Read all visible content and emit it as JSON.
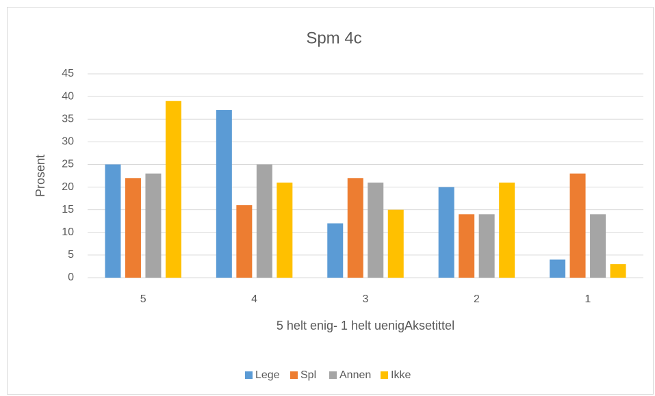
{
  "chart_data": {
    "type": "bar",
    "title": "Spm 4c",
    "x_label": "5 helt enig- 1 helt uenigAksetittel",
    "y_label": "Prosent",
    "categories": [
      "5",
      "4",
      "3",
      "2",
      "1"
    ],
    "series": [
      {
        "name": "Lege",
        "color": "#5b9bd5",
        "values": [
          25,
          37,
          12,
          20,
          4
        ]
      },
      {
        "name": "Spl",
        "color": "#ed7d31",
        "values": [
          22,
          16,
          22,
          14,
          23
        ]
      },
      {
        "name": "Annen",
        "color": "#a5a5a5",
        "values": [
          23,
          25,
          21,
          14,
          14
        ]
      },
      {
        "name": "Ikke",
        "color": "#ffc000",
        "values": [
          39,
          21,
          15,
          21,
          3
        ]
      }
    ],
    "ylim": [
      0,
      45
    ],
    "yticks": [
      0,
      5,
      10,
      15,
      20,
      25,
      30,
      35,
      40,
      45
    ],
    "grid": true,
    "legend": "bottom"
  }
}
